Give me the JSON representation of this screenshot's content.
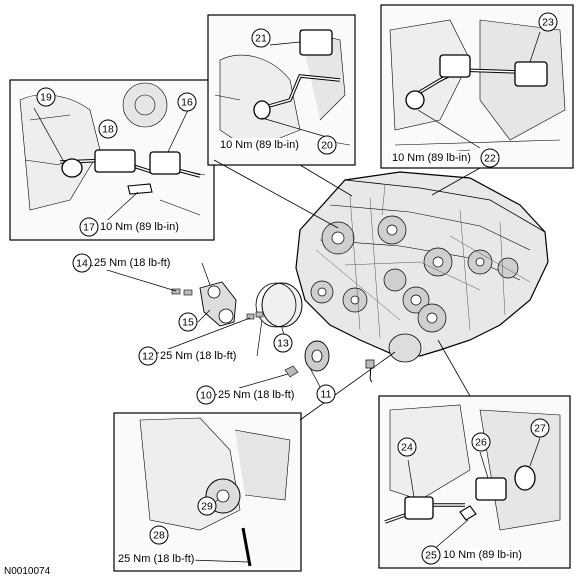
{
  "figure_code": "N0010074",
  "callouts": {
    "c10": "10",
    "c11": "11",
    "c12": "12",
    "c13": "13",
    "c14": "14",
    "c15": "15",
    "c16": "16",
    "c17": "17",
    "c18": "18",
    "c19": "19",
    "c20": "20",
    "c21": "21",
    "c22": "22",
    "c23": "23",
    "c24": "24",
    "c25": "25",
    "c26": "26",
    "c27": "27",
    "c28": "28",
    "c29": "29"
  },
  "torques": {
    "t17": "10 Nm (89 lb-in)",
    "t20": "10 Nm (89 lb-in)",
    "t22": "10 Nm (89 lb-in)",
    "t14": "25 Nm (18 lb-ft)",
    "t12": "25 Nm (18 lb-ft)",
    "t10": "25 Nm (18 lb-ft)",
    "t28": "25 Nm (18 lb-ft)",
    "t25": "10 Nm (89 lb-in)"
  }
}
